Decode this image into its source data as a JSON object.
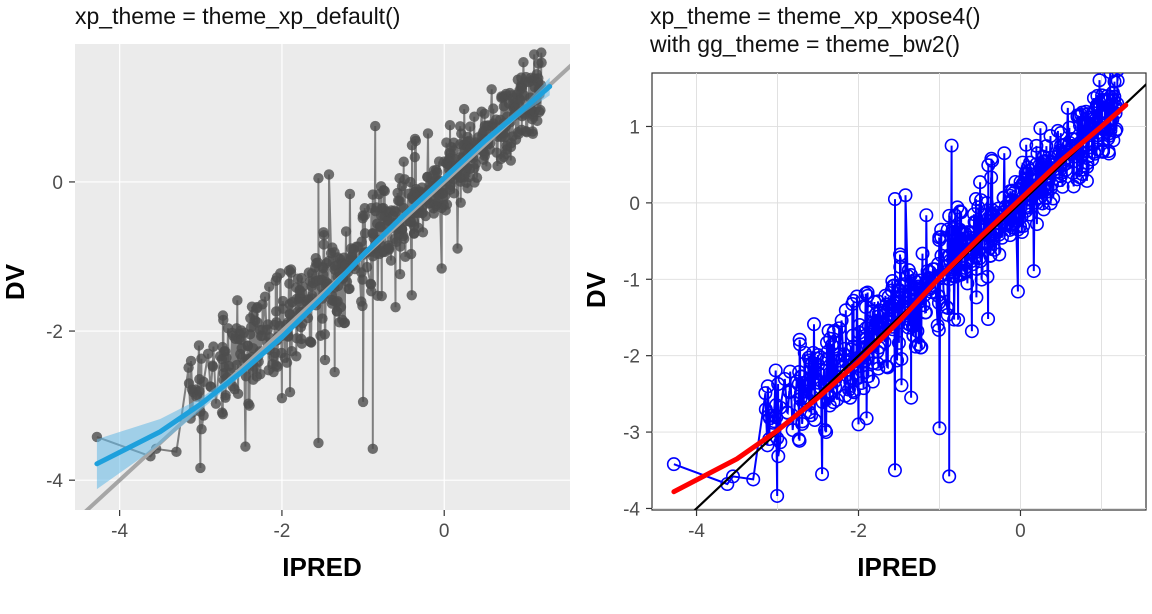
{
  "chart_data": [
    {
      "type": "scatter",
      "title": "xp_theme = theme_xp_default()",
      "subtitle": "",
      "xlabel": "IPRED",
      "ylabel": "DV",
      "xlim": [
        -4.55,
        1.55
      ],
      "ylim": [
        -4.4,
        1.85
      ],
      "xticks": [
        -4,
        -2,
        0
      ],
      "yticks": [
        -4,
        -2,
        0
      ],
      "grid": true,
      "background": "#ebebeb",
      "point_style": "filled",
      "point_color": "#4d4d4d",
      "line_color": "#595959",
      "smooth_color": "#1ea0dc",
      "band_color": "#63b8e6",
      "identity_color": "#a6a6a6",
      "smooth": {
        "x": [
          -4.28,
          -3.5,
          -3.0,
          -2.5,
          -2.0,
          -1.5,
          -1.0,
          -0.5,
          0.0,
          0.5,
          1.0,
          1.3
        ],
        "y": [
          -3.78,
          -3.35,
          -2.98,
          -2.55,
          -2.08,
          -1.55,
          -0.98,
          -0.45,
          0.05,
          0.55,
          1.0,
          1.28
        ]
      },
      "band": {
        "upper": [
          -3.45,
          -3.18,
          -2.9,
          -2.5,
          -2.03,
          -1.5,
          -0.93,
          -0.4,
          0.1,
          0.6,
          1.06,
          1.4
        ],
        "lower": [
          -4.12,
          -3.52,
          -3.06,
          -2.6,
          -2.13,
          -1.6,
          -1.03,
          -0.5,
          0.0,
          0.5,
          0.94,
          1.16
        ]
      },
      "identity": {
        "x": [
          -4.5,
          1.6
        ],
        "y": [
          -4.5,
          1.6
        ]
      }
    },
    {
      "type": "scatter",
      "title": "xp_theme = theme_xp_xpose4()",
      "subtitle": "with gg_theme = theme_bw2()",
      "xlabel": "IPRED",
      "ylabel": "DV",
      "xlim": [
        -4.55,
        1.55
      ],
      "ylim": [
        -4.02,
        1.7
      ],
      "xticks": [
        -4,
        -2,
        0
      ],
      "yticks": [
        -4,
        -3,
        -2,
        -1,
        0,
        1
      ],
      "grid": true,
      "background": "#ffffff",
      "point_style": "open",
      "point_color": "#0000ff",
      "line_color": "#0000ff",
      "smooth_color": "#ff0000",
      "identity_color": "#000000",
      "smooth": {
        "x": [
          -4.28,
          -3.5,
          -3.0,
          -2.5,
          -2.0,
          -1.5,
          -1.0,
          -0.5,
          0.0,
          0.5,
          1.0,
          1.3
        ],
        "y": [
          -3.78,
          -3.35,
          -2.98,
          -2.55,
          -2.08,
          -1.55,
          -0.98,
          -0.45,
          0.05,
          0.55,
          1.0,
          1.28
        ]
      },
      "identity": {
        "x": [
          -4.5,
          1.6
        ],
        "y": [
          -4.5,
          1.6
        ]
      }
    }
  ],
  "points": {
    "x": [
      -4.28,
      -3.55,
      -3.62,
      -3.3,
      -2.45,
      -1.55,
      -0.88,
      -1.9,
      -1.0,
      -1.35,
      1.2,
      0.95,
      -1.42,
      -1.55,
      -0.85,
      -0.55,
      -0.75,
      -0.35,
      -0.2,
      0.5,
      -1.95,
      -1.7,
      -0.6,
      -0.4,
      -2.0,
      -2.4
    ],
    "y": [
      -3.42,
      -3.58,
      -3.68,
      -3.62,
      -3.55,
      -3.5,
      -3.58,
      -2.82,
      -2.95,
      -2.55,
      1.6,
      1.4,
      0.1,
      0.05,
      0.75,
      0.05,
      -0.35,
      0.55,
      0.65,
      0.35,
      -1.92,
      -1.7,
      -1.68,
      -1.52,
      -2.9,
      -3.0
    ]
  }
}
